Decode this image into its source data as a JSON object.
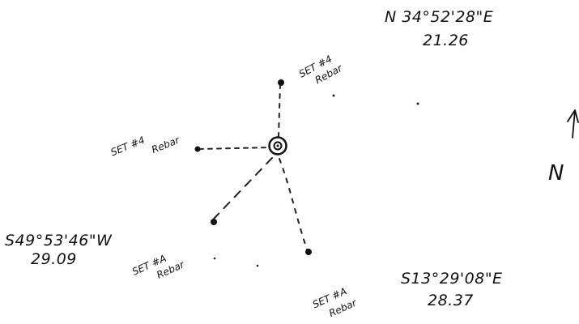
{
  "diagram": {
    "center_monument": "found monument",
    "north_arrow": {
      "label": "N"
    },
    "courses": [
      {
        "id": "ne",
        "bearing": "N 34°52'28\"E",
        "distance": "21.26"
      },
      {
        "id": "sw",
        "bearing": "S49°53'46\"W",
        "distance": "29.09"
      },
      {
        "id": "se",
        "bearing": "S13°29'08\"E",
        "distance": "28.37"
      }
    ],
    "pins": [
      {
        "id": "north",
        "set_label": "SET #4",
        "type_label": "Rebar"
      },
      {
        "id": "west",
        "set_label": "SET #4",
        "type_label": "Rebar"
      },
      {
        "id": "southwest",
        "set_label": "SET #A",
        "type_label": "Rebar"
      },
      {
        "id": "south",
        "set_label": "SET #A",
        "type_label": "Rebar"
      }
    ]
  }
}
